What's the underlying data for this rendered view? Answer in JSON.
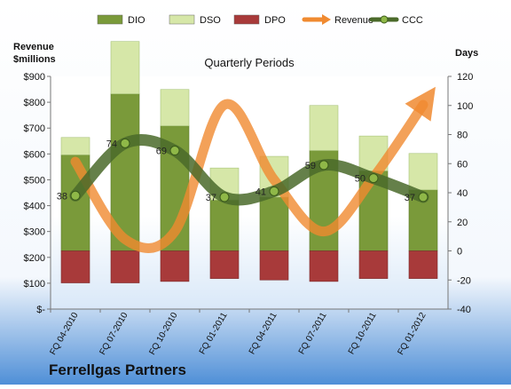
{
  "company": "Ferrellgas Partners",
  "chart_data": {
    "type": "bar",
    "title": "Quarterly Periods",
    "left_axis_label_line1": "Revenue",
    "left_axis_label_line2": "$millions",
    "right_axis_label": "Days",
    "categories": [
      "FQ 04-2010",
      "FQ 07-2010",
      "FQ 10-2010",
      "FQ 01-2011",
      "FQ 04-2011",
      "FQ 07-2011",
      "FQ 10-2011",
      "FQ 01-2012"
    ],
    "left_ticks": [
      "$-",
      "$100",
      "$200",
      "$300",
      "$400",
      "$500",
      "$600",
      "$700",
      "$800",
      "$900"
    ],
    "left_ylim": [
      0,
      900
    ],
    "right_ylim": [
      -40,
      120
    ],
    "right_ticks": [
      -40,
      -20,
      0,
      20,
      40,
      60,
      80,
      100,
      120
    ],
    "legend_position": "top",
    "grid": false,
    "series": [
      {
        "name": "DIO",
        "type": "bar",
        "stack": "positive",
        "color": "#7a9a3a",
        "values": [
          66,
          108,
          86,
          35,
          37,
          69,
          55,
          42
        ]
      },
      {
        "name": "DSO",
        "type": "bar",
        "stack": "positive",
        "color": "#d6e7a8",
        "values": [
          12,
          36,
          25,
          22,
          28,
          31,
          24,
          25
        ]
      },
      {
        "name": "DPO",
        "type": "bar",
        "stack": "negative",
        "color": "#a83a3a",
        "values": [
          -22,
          -22,
          -21,
          -19,
          -20,
          -21,
          -19,
          -19
        ]
      },
      {
        "name": "Revenue",
        "type": "line",
        "axis": "left",
        "color": "#f08a30",
        "values": [
          570,
          270,
          300,
          790,
          500,
          300,
          510,
          790
        ]
      },
      {
        "name": "CCC",
        "type": "line",
        "axis": "right",
        "color": "#4a6a2a",
        "values": [
          38,
          74,
          69,
          37,
          41,
          59,
          50,
          37
        ]
      }
    ]
  }
}
